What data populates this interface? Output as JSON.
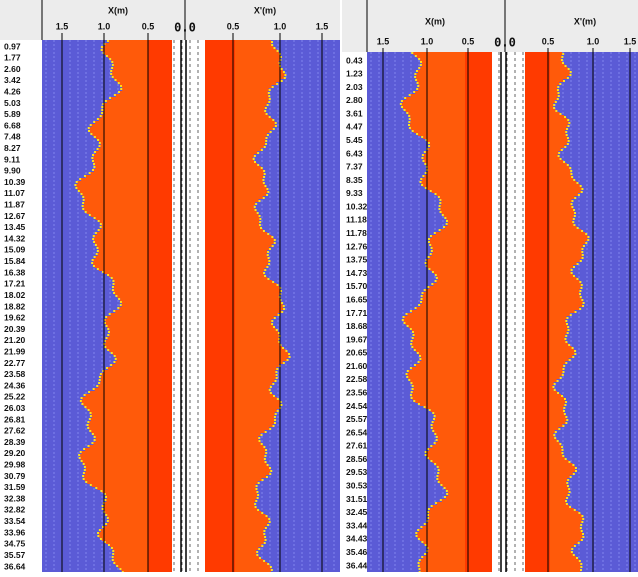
{
  "panels": [
    {
      "x_title": "X(m)",
      "x_ticks": [
        "1.5",
        "1.0",
        "0.5"
      ],
      "zero": "0.0",
      "xp_title": "X'(m)",
      "xp_ticks": [
        "0.5",
        "1.0",
        "1.5"
      ],
      "depths": [
        "0.97",
        "1.77",
        "2.60",
        "3.42",
        "4.26",
        "5.03",
        "5.89",
        "6.68",
        "7.48",
        "8.27",
        "9.11",
        "9.90",
        "10.39",
        "11.07",
        "11.87",
        "12.67",
        "13.45",
        "14.32",
        "15.09",
        "15.84",
        "16.38",
        "17.21",
        "18.02",
        "18.82",
        "19.62",
        "20.39",
        "21.20",
        "21.99",
        "22.77",
        "23.58",
        "24.36",
        "25.22",
        "26.03",
        "26.81",
        "27.62",
        "28.39",
        "29.20",
        "29.98",
        "30.79",
        "31.59",
        "32.38",
        "32.82",
        "33.54",
        "33.96",
        "34.75",
        "35.57",
        "36.64"
      ]
    },
    {
      "x_title": "X(m)",
      "x_ticks": [
        "1.5",
        "1.0",
        "0.5"
      ],
      "zero": "0.0",
      "xp_title": "X'(m)",
      "xp_ticks": [
        "0.5",
        "1.0",
        "1.5"
      ],
      "depths": [
        "0.43",
        "1.23",
        "2.03",
        "2.80",
        "3.61",
        "4.47",
        "5.45",
        "6.43",
        "7.37",
        "8.35",
        "9.33",
        "10.32",
        "11.18",
        "11.78",
        "12.76",
        "13.75",
        "14.73",
        "15.70",
        "16.65",
        "17.71",
        "18.68",
        "19.67",
        "20.65",
        "21.60",
        "22.58",
        "23.56",
        "24.54",
        "25.57",
        "26.54",
        "27.61",
        "28.56",
        "29.53",
        "30.53",
        "31.51",
        "32.45",
        "33.44",
        "34.43",
        "35.46",
        "36.44"
      ]
    }
  ]
}
